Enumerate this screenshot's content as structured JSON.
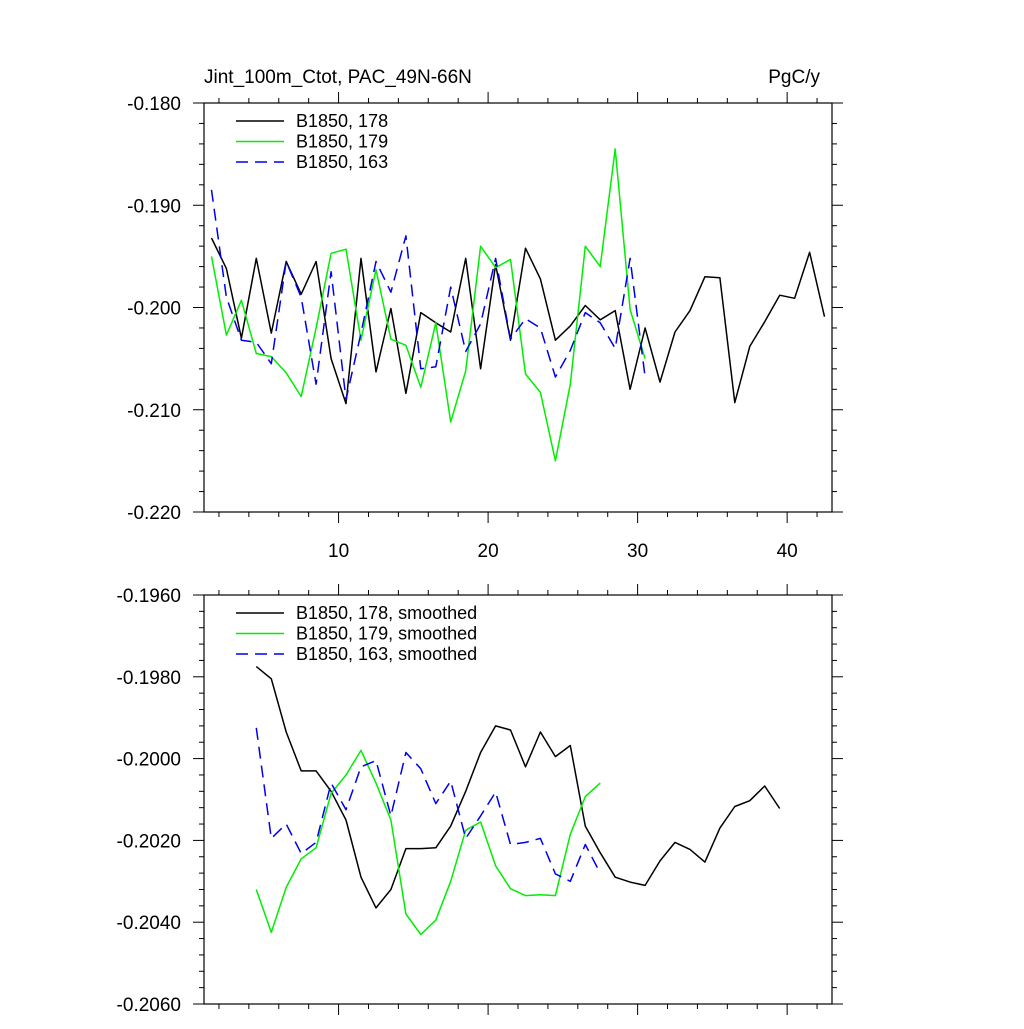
{
  "colors": {
    "black": "#000000",
    "green": "#00ee00",
    "blue": "#0000ee",
    "frame": "#000000"
  },
  "chart_data": [
    {
      "type": "line",
      "title": "Jint_100m_Ctot, PAC_49N-66N",
      "units": "PgC/y",
      "xlim": [
        1,
        43
      ],
      "ylim": [
        -0.22,
        -0.18
      ],
      "x_ticks": [
        10,
        20,
        30,
        40
      ],
      "x_tick_labels": [
        "10",
        "20",
        "30",
        "40"
      ],
      "y_ticks": [
        -0.22,
        -0.21,
        -0.2,
        -0.19,
        -0.18
      ],
      "y_tick_labels": [
        "-0.220",
        "-0.210",
        "-0.200",
        "-0.190",
        "-0.180"
      ],
      "legend_position": "top-left",
      "series": [
        {
          "name": "B1850, 178",
          "color": "#000000",
          "dash": "solid",
          "x": [
            1.5,
            2.5,
            3.5,
            4.5,
            5.5,
            6.5,
            7.5,
            8.5,
            9.5,
            10.5,
            11.5,
            12.5,
            13.5,
            14.5,
            15.5,
            16.5,
            17.5,
            18.5,
            19.5,
            20.5,
            21.5,
            22.5,
            23.5,
            24.5,
            25.5,
            26.5,
            27.5,
            28.5,
            29.5,
            30.5,
            31.5,
            32.5,
            33.5,
            34.5,
            35.5,
            36.5,
            37.5,
            38.5,
            39.5,
            40.5,
            41.5,
            42.5
          ],
          "values": [
            -0.1932,
            -0.1962,
            -0.203,
            -0.1952,
            -0.2025,
            -0.1955,
            -0.1987,
            -0.1955,
            -0.205,
            -0.2094,
            -0.1952,
            -0.2063,
            -0.2001,
            -0.2084,
            -0.2005,
            -0.2015,
            -0.2024,
            -0.1952,
            -0.206,
            -0.1958,
            -0.2032,
            -0.1942,
            -0.1972,
            -0.2032,
            -0.2018,
            -0.1998,
            -0.2012,
            -0.2003,
            -0.208,
            -0.202,
            -0.2073,
            -0.2024,
            -0.2003,
            -0.197,
            -0.1971,
            -0.2093,
            -0.2038,
            -0.2014,
            -0.1988,
            -0.1991,
            -0.1946,
            -0.2009
          ]
        },
        {
          "name": "B1850, 179",
          "color": "#00ee00",
          "dash": "solid",
          "x": [
            1.5,
            2.5,
            3.5,
            4.5,
            5.5,
            6.5,
            7.5,
            8.5,
            9.5,
            10.5,
            11.5,
            12.5,
            13.5,
            14.5,
            15.5,
            16.5,
            17.5,
            18.5,
            19.5,
            20.5,
            21.5,
            22.5,
            23.5,
            24.5,
            25.5,
            26.5,
            27.5,
            28.5,
            29.5,
            30.5
          ],
          "values": [
            -0.195,
            -0.2027,
            -0.1993,
            -0.2045,
            -0.2048,
            -0.2064,
            -0.2087,
            -0.202,
            -0.1947,
            -0.1943,
            -0.2032,
            -0.1963,
            -0.2031,
            -0.2037,
            -0.2078,
            -0.2015,
            -0.2112,
            -0.2062,
            -0.194,
            -0.1961,
            -0.1953,
            -0.2065,
            -0.2083,
            -0.215,
            -0.2075,
            -0.194,
            -0.196,
            -0.1845,
            -0.2002,
            -0.205
          ]
        },
        {
          "name": "B1850, 163",
          "color": "#0000ee",
          "dash": "dashed",
          "x": [
            1.5,
            2.5,
            3.5,
            4.5,
            5.5,
            6.5,
            7.5,
            8.5,
            9.5,
            10.5,
            11.5,
            12.5,
            13.5,
            14.5,
            15.5,
            16.5,
            17.5,
            18.5,
            19.5,
            20.5,
            21.5,
            22.5,
            23.5,
            24.5,
            25.5,
            26.5,
            27.5,
            28.5,
            29.5,
            30.5
          ],
          "values": [
            -0.1885,
            -0.199,
            -0.2032,
            -0.2034,
            -0.2055,
            -0.1955,
            -0.199,
            -0.2075,
            -0.1965,
            -0.209,
            -0.2025,
            -0.1955,
            -0.1985,
            -0.193,
            -0.206,
            -0.2058,
            -0.198,
            -0.2043,
            -0.2016,
            -0.1952,
            -0.2031,
            -0.2011,
            -0.202,
            -0.2068,
            -0.2042,
            -0.2005,
            -0.2015,
            -0.204,
            -0.1952,
            -0.2068
          ]
        }
      ]
    },
    {
      "type": "line",
      "title": "",
      "xlim": [
        1,
        43
      ],
      "ylim": [
        -0.206,
        -0.196
      ],
      "x_ticks": [
        10,
        20,
        30,
        40
      ],
      "y_ticks": [
        -0.206,
        -0.204,
        -0.202,
        -0.2,
        -0.198,
        -0.196
      ],
      "y_tick_labels": [
        "-0.2060",
        "-0.2040",
        "-0.2020",
        "-0.2000",
        "-0.1980",
        "-0.1960"
      ],
      "legend_position": "top-left",
      "series": [
        {
          "name": "B1850, 178, smoothed",
          "color": "#000000",
          "dash": "solid",
          "x": [
            4.5,
            5.5,
            6.5,
            7.5,
            8.5,
            9.5,
            10.5,
            11.5,
            12.5,
            13.5,
            14.5,
            15.5,
            16.5,
            17.5,
            18.5,
            19.5,
            20.5,
            21.5,
            22.5,
            23.5,
            24.5,
            25.5,
            26.5,
            27.5,
            28.5,
            29.5,
            30.5,
            31.5,
            32.5,
            33.5,
            34.5,
            35.5,
            36.5,
            37.5,
            38.5,
            39.5
          ],
          "values": [
            -0.19775,
            -0.19805,
            -0.19935,
            -0.2003,
            -0.2003,
            -0.2008,
            -0.2015,
            -0.2029,
            -0.20365,
            -0.2032,
            -0.2022,
            -0.2022,
            -0.20218,
            -0.20165,
            -0.2008,
            -0.19985,
            -0.1992,
            -0.1993,
            -0.2002,
            -0.19935,
            -0.19995,
            -0.19968,
            -0.20165,
            -0.2023,
            -0.2029,
            -0.20302,
            -0.2031,
            -0.2025,
            -0.20205,
            -0.20222,
            -0.20253,
            -0.2017,
            -0.20117,
            -0.20103,
            -0.20067,
            -0.20122
          ]
        },
        {
          "name": "B1850, 179, smoothed",
          "color": "#00ee00",
          "dash": "solid",
          "x": [
            4.5,
            5.5,
            6.5,
            7.5,
            8.5,
            9.5,
            10.5,
            11.5,
            12.5,
            13.5,
            14.5,
            15.5,
            16.5,
            17.5,
            18.5,
            19.5,
            20.5,
            21.5,
            22.5,
            23.5,
            24.5,
            25.5,
            26.5,
            27.5
          ],
          "values": [
            -0.2032,
            -0.20425,
            -0.20315,
            -0.20245,
            -0.20218,
            -0.20085,
            -0.2004,
            -0.1998,
            -0.2006,
            -0.2015,
            -0.2038,
            -0.2043,
            -0.20395,
            -0.203,
            -0.20175,
            -0.20155,
            -0.20262,
            -0.20318,
            -0.20335,
            -0.20333,
            -0.20335,
            -0.20185,
            -0.20093,
            -0.2006
          ]
        },
        {
          "name": "B1850, 163, smoothed",
          "color": "#0000ee",
          "dash": "dashed",
          "x": [
            4.5,
            5.5,
            6.5,
            7.5,
            8.5,
            9.5,
            10.5,
            11.5,
            12.5,
            13.5,
            14.5,
            15.5,
            16.5,
            17.5,
            18.5,
            19.5,
            20.5,
            21.5,
            22.5,
            23.5,
            24.5,
            25.5,
            26.5,
            27.5
          ],
          "values": [
            -0.19925,
            -0.20195,
            -0.2016,
            -0.20232,
            -0.20205,
            -0.2006,
            -0.20125,
            -0.2002,
            -0.20005,
            -0.2014,
            -0.19985,
            -0.20025,
            -0.2011,
            -0.20055,
            -0.20195,
            -0.2014,
            -0.20082,
            -0.2021,
            -0.20205,
            -0.20195,
            -0.20282,
            -0.203,
            -0.2021,
            -0.2028
          ]
        }
      ]
    }
  ]
}
